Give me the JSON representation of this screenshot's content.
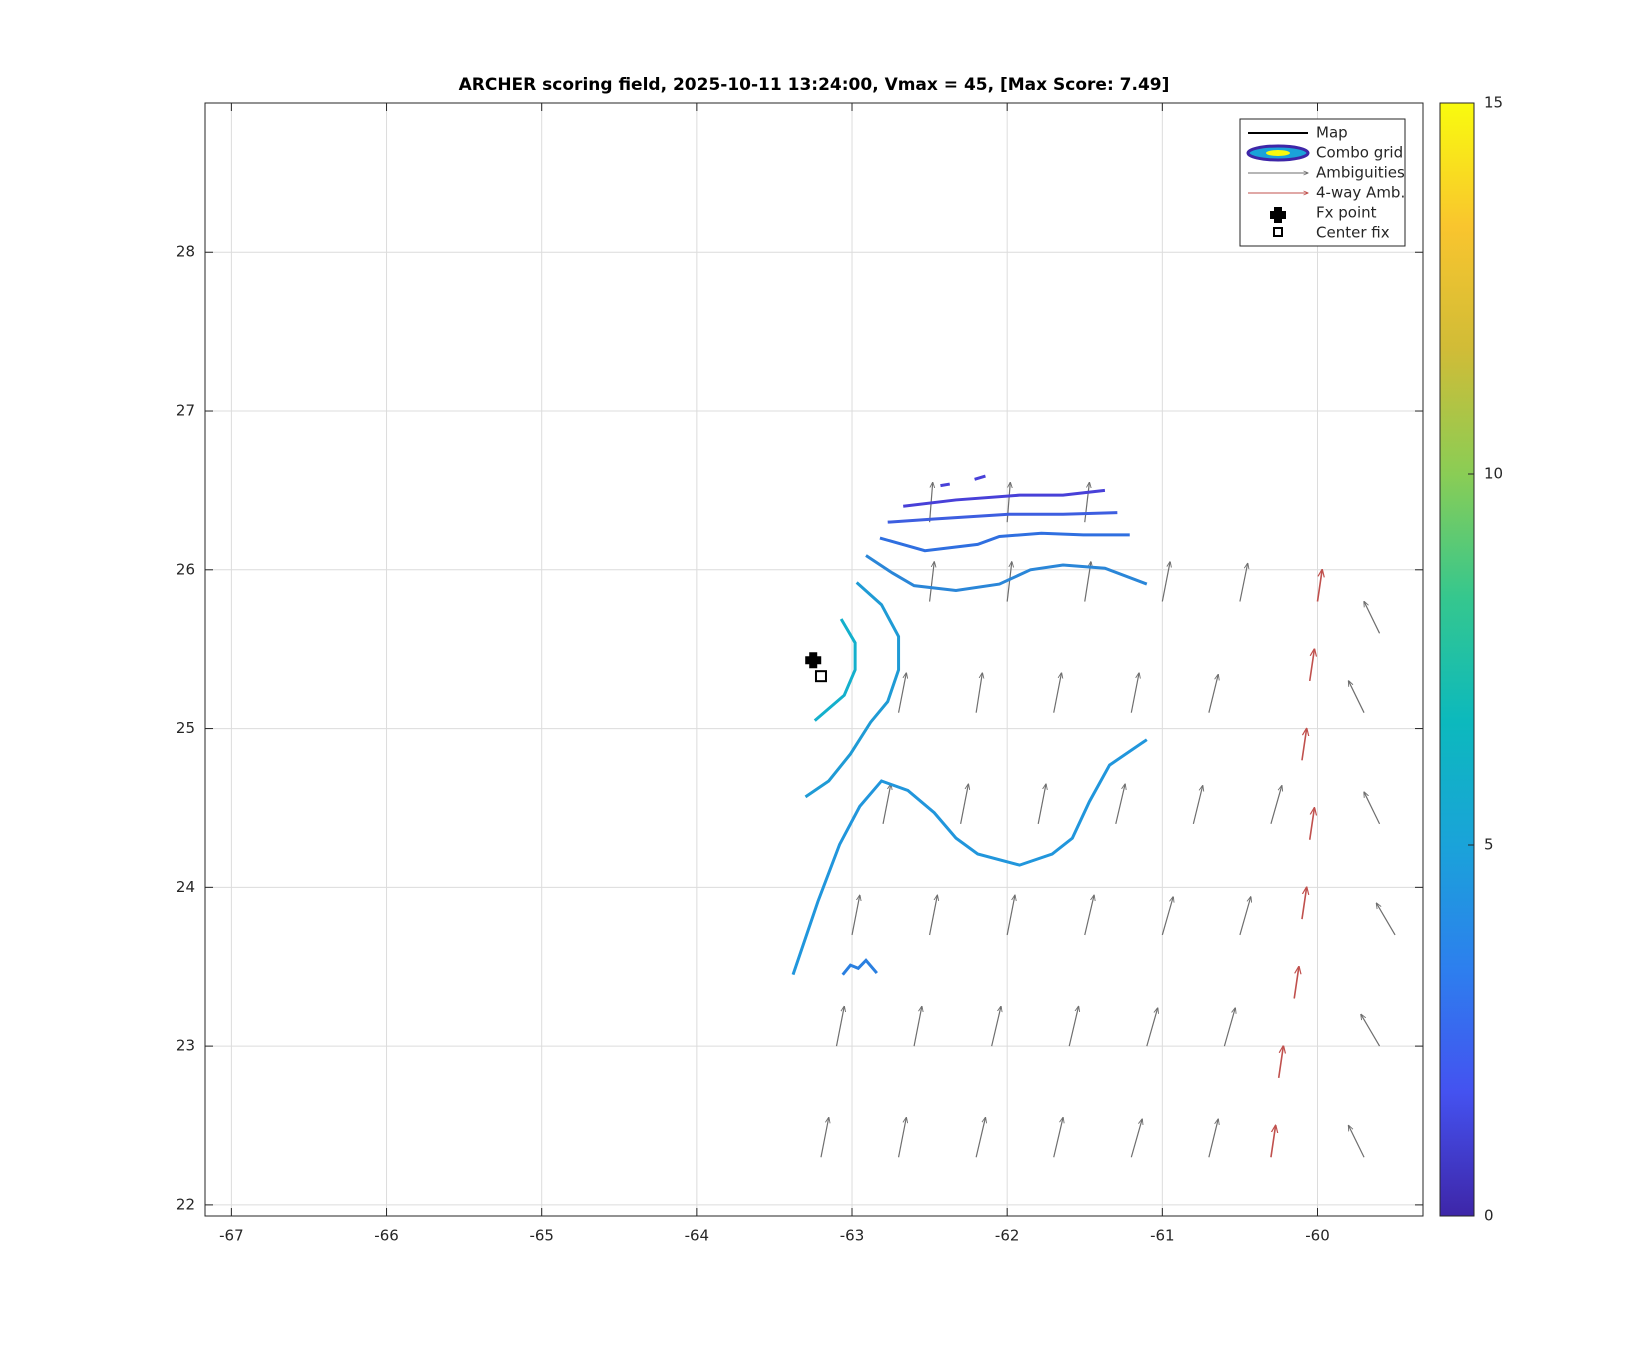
{
  "chart_data": {
    "type": "quiver",
    "title": "ARCHER scoring field, 2025-10-11 13:24:00, Vmax = 45, [Max Score: 7.49]",
    "xlim": [
      -67.17,
      -59.32
    ],
    "ylim": [
      21.93,
      28.94
    ],
    "xticks": [
      -67,
      -66,
      -65,
      -64,
      -63,
      -62,
      -61,
      -60
    ],
    "yticks": [
      22,
      23,
      24,
      25,
      26,
      27,
      28
    ],
    "grid": true,
    "colorbar": {
      "clim": [
        0,
        15
      ],
      "ticks": [
        0,
        5,
        10,
        15
      ],
      "colormap": [
        "#3e26a8",
        "#4452f0",
        "#2d7fee",
        "#1aa3d9",
        "#0cb9bd",
        "#35c78e",
        "#8acd55",
        "#d0bc37",
        "#f9c52e",
        "#f9fb0e"
      ]
    },
    "map": {
      "name": "Map"
    },
    "combo_grid": {
      "name": "Combo grid"
    },
    "contours": [
      {
        "color": "#4840d8",
        "x": [
          -62.67,
          -62.33,
          -61.92,
          -61.64,
          -61.37
        ],
        "y": [
          26.4,
          26.44,
          26.47,
          26.47,
          26.5
        ]
      },
      {
        "color": "#4840d8",
        "x": [
          -62.43,
          -62.37
        ],
        "y": [
          26.53,
          26.54
        ]
      },
      {
        "color": "#4840d8",
        "x": [
          -62.21,
          -62.14
        ],
        "y": [
          26.57,
          26.59
        ]
      },
      {
        "color": "#3d5ee0",
        "x": [
          -62.77,
          -62.47,
          -61.99,
          -61.64,
          -61.29
        ],
        "y": [
          26.3,
          26.32,
          26.35,
          26.35,
          26.36
        ]
      },
      {
        "color": "#2f6fe0",
        "x": [
          -62.82,
          -62.53,
          -62.19,
          -62.05,
          -61.78,
          -61.51,
          -61.21
        ],
        "y": [
          26.2,
          26.12,
          26.16,
          26.21,
          26.23,
          26.22,
          26.22
        ]
      },
      {
        "color": "#2a86d8",
        "x": [
          -62.91,
          -62.74,
          -62.6,
          -62.33,
          -62.05,
          -61.85,
          -61.64,
          -61.37,
          -61.1
        ],
        "y": [
          26.09,
          25.98,
          25.9,
          25.87,
          25.91,
          26.0,
          26.03,
          26.01,
          25.91
        ]
      },
      {
        "color": "#1f9bd5",
        "x": [
          -62.97,
          -62.81,
          -62.7,
          -62.7,
          -62.77,
          -62.88,
          -63.01,
          -63.15,
          -63.3
        ],
        "y": [
          25.92,
          25.78,
          25.58,
          25.37,
          25.17,
          25.04,
          24.84,
          24.67,
          24.57
        ]
      },
      {
        "color": "#14b0cc",
        "x": [
          -63.07,
          -62.98,
          -62.98,
          -63.05,
          -63.24
        ],
        "y": [
          25.69,
          25.54,
          25.37,
          25.21,
          25.05
        ]
      },
      {
        "color": "#2196dc",
        "x": [
          -63.38,
          -63.22,
          -63.08,
          -62.95,
          -62.81,
          -62.64,
          -62.47,
          -62.33,
          -62.19,
          -61.92,
          -61.71,
          -61.58,
          -61.47,
          -61.34,
          -61.1
        ],
        "y": [
          23.45,
          23.91,
          24.27,
          24.51,
          24.67,
          24.61,
          24.47,
          24.31,
          24.21,
          24.14,
          24.21,
          24.31,
          24.54,
          24.77,
          24.93
        ]
      },
      {
        "color": "#2a7fe0",
        "x": [
          -63.06,
          -63.01,
          -62.96,
          -62.91,
          -62.84
        ],
        "y": [
          23.45,
          23.51,
          23.49,
          23.54,
          23.46
        ]
      }
    ],
    "ambiguities": {
      "name": "Ambiguities",
      "color": "#6e6e6e",
      "x": [
        -63.2,
        -62.7,
        -62.2,
        -61.7,
        -61.2,
        -60.7,
        -59.7,
        -63.1,
        -62.6,
        -62.1,
        -61.6,
        -61.1,
        -60.6,
        -59.6,
        -63.0,
        -62.5,
        -62.0,
        -61.5,
        -61.0,
        -60.5,
        -59.5,
        -62.8,
        -62.3,
        -61.8,
        -61.3,
        -60.8,
        -60.3,
        -59.6,
        -62.7,
        -62.2,
        -61.7,
        -61.2,
        -60.7,
        -59.7,
        -62.5,
        -62.0,
        -61.5,
        -61.0,
        -60.5,
        -59.6,
        -62.5,
        -62.0,
        -61.5
      ],
      "y": [
        22.3,
        22.3,
        22.3,
        22.3,
        22.3,
        22.3,
        22.3,
        23.0,
        23.0,
        23.0,
        23.0,
        23.0,
        23.0,
        23.0,
        23.7,
        23.7,
        23.7,
        23.7,
        23.7,
        23.7,
        23.7,
        24.4,
        24.4,
        24.4,
        24.4,
        24.4,
        24.4,
        24.4,
        25.1,
        25.1,
        25.1,
        25.1,
        25.1,
        25.1,
        25.8,
        25.8,
        25.8,
        25.8,
        25.8,
        25.6,
        26.3,
        26.3,
        26.3
      ],
      "u": [
        0.05,
        0.05,
        0.06,
        0.06,
        0.07,
        0.06,
        -0.1,
        0.05,
        0.05,
        0.06,
        0.06,
        0.07,
        0.07,
        -0.12,
        0.05,
        0.05,
        0.05,
        0.06,
        0.07,
        0.07,
        -0.12,
        0.05,
        0.05,
        0.05,
        0.06,
        0.06,
        0.07,
        -0.1,
        0.05,
        0.04,
        0.05,
        0.05,
        0.06,
        -0.1,
        0.03,
        0.03,
        0.04,
        0.05,
        0.05,
        -0.1,
        0.02,
        0.02,
        0.03
      ],
      "v": [
        0.25,
        0.25,
        0.25,
        0.25,
        0.24,
        0.24,
        0.2,
        0.25,
        0.25,
        0.25,
        0.25,
        0.24,
        0.24,
        0.2,
        0.25,
        0.25,
        0.25,
        0.25,
        0.24,
        0.24,
        0.2,
        0.25,
        0.25,
        0.25,
        0.25,
        0.24,
        0.24,
        0.2,
        0.25,
        0.25,
        0.25,
        0.25,
        0.24,
        0.2,
        0.25,
        0.25,
        0.25,
        0.25,
        0.24,
        0.2,
        0.25,
        0.25,
        0.25
      ]
    },
    "four_way": {
      "name": "4-way Amb.",
      "color": "#c0504d",
      "x": [
        -60.3,
        -60.25,
        -60.15,
        -60.1,
        -60.05,
        -60.1,
        -60.05,
        -60.0
      ],
      "y": [
        22.3,
        22.8,
        23.3,
        23.8,
        24.3,
        24.8,
        25.3,
        25.8
      ],
      "u": [
        0.03,
        0.03,
        0.03,
        0.03,
        0.03,
        0.03,
        0.03,
        0.03
      ],
      "v": [
        0.2,
        0.2,
        0.2,
        0.2,
        0.2,
        0.2,
        0.2,
        0.2
      ]
    },
    "fx_point": {
      "name": "Fx point",
      "x": -63.25,
      "y": 25.43
    },
    "center_fix": {
      "name": "Center fix",
      "x": -63.2,
      "y": 25.33
    }
  }
}
